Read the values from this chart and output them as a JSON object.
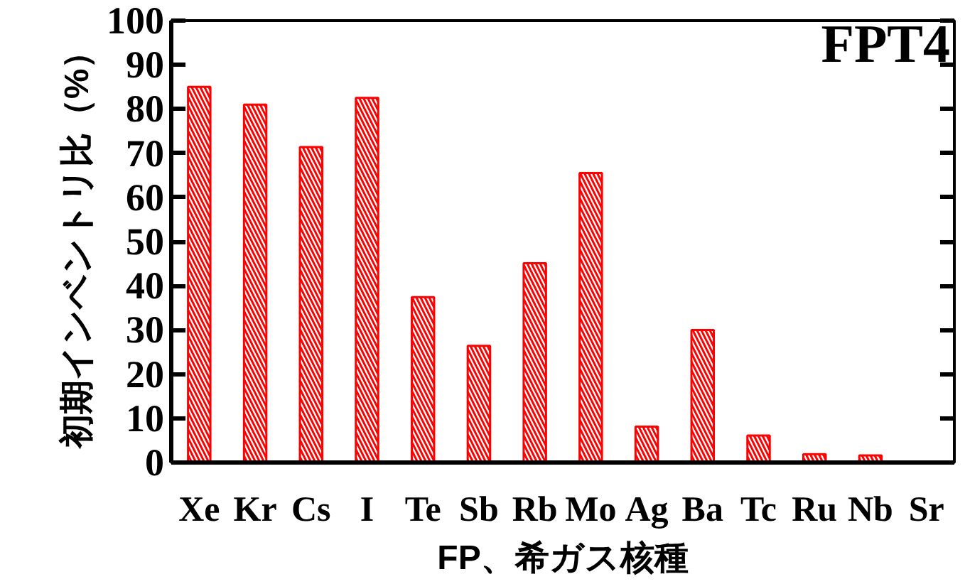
{
  "chart_data": {
    "type": "bar",
    "xlabel": "FP、希ガス核種",
    "ylabel": "初期インベントリ比（%）",
    "categories": [
      "Xe",
      "Kr",
      "Cs",
      "I",
      "Te",
      "Sb",
      "Rb",
      "Mo",
      "Ag",
      "Ba",
      "Tc",
      "Ru",
      "Nb",
      "Sr"
    ],
    "values": [
      85,
      81,
      71.4,
      82.5,
      37.4,
      26.4,
      45.1,
      65.5,
      8.1,
      30,
      6.1,
      1.9,
      1.6,
      0
    ],
    "color": "#ff0000",
    "ylim": [
      0,
      100
    ],
    "yticks": [
      0,
      10,
      20,
      30,
      40,
      50,
      60,
      70,
      80,
      90,
      100
    ],
    "annotations": [
      "FPT4"
    ],
    "grid": false
  }
}
